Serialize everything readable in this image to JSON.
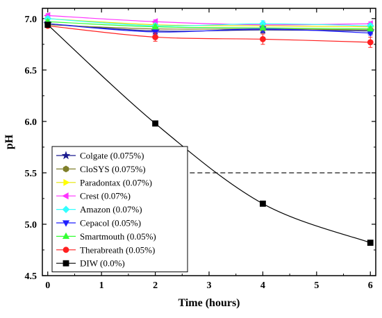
{
  "chart_data": {
    "type": "line",
    "title": "",
    "xlabel": "Time (hours)",
    "ylabel": "pH",
    "xlim": [
      -0.1,
      6.1
    ],
    "ylim": [
      4.5,
      7.1
    ],
    "xticks": [
      0,
      1,
      2,
      3,
      4,
      5,
      6
    ],
    "xtick_labels": [
      "0",
      "1",
      "2",
      "3",
      "4",
      "5",
      "6"
    ],
    "yticks": [
      4.5,
      5.0,
      5.5,
      6.0,
      6.5,
      7.0
    ],
    "ytick_labels": [
      "4.5",
      "5.0",
      "5.5",
      "6.0",
      "6.5",
      "7.0"
    ],
    "grid": false,
    "legend_position": "bottom-left",
    "threshold": {
      "y": 5.5,
      "x_from": 2.5,
      "x_to": 6.0,
      "style": "dashed"
    },
    "x": [
      0,
      2,
      4,
      6
    ],
    "series": [
      {
        "name": "Colgate (0.075%)",
        "values": [
          6.95,
          6.88,
          6.89,
          6.88
        ],
        "color": "#1b1b8f",
        "marker": "star",
        "errors": [
          0.02,
          0.02,
          0.03,
          0.02
        ]
      },
      {
        "name": "CloSYS (0.075%)",
        "values": [
          6.94,
          6.9,
          6.9,
          6.89
        ],
        "color": "#7f7f2a",
        "marker": "hexagon",
        "errors": [
          0.02,
          0.02,
          0.02,
          0.02
        ]
      },
      {
        "name": "Paradontax (0.07%)",
        "values": [
          7.0,
          6.94,
          6.93,
          6.92
        ],
        "color": "#ffff00",
        "marker": "triangle-right",
        "errors": [
          0.02,
          0.02,
          0.02,
          0.02
        ]
      },
      {
        "name": "Crest (0.07%)",
        "values": [
          7.03,
          6.97,
          6.94,
          6.95
        ],
        "color": "#ff33ff",
        "marker": "triangle-left",
        "errors": [
          0.02,
          0.02,
          0.02,
          0.02
        ]
      },
      {
        "name": "Amazon (0.07%)",
        "values": [
          7.0,
          6.93,
          6.95,
          6.93
        ],
        "color": "#33ffff",
        "marker": "diamond",
        "errors": [
          0.02,
          0.02,
          0.03,
          0.02
        ]
      },
      {
        "name": "Cepacol (0.05%)",
        "values": [
          6.95,
          6.87,
          6.9,
          6.86
        ],
        "color": "#1f1fff",
        "marker": "triangle-down",
        "errors": [
          0.02,
          0.02,
          0.03,
          0.02
        ]
      },
      {
        "name": "Smartmouth (0.05%)",
        "values": [
          6.97,
          6.92,
          6.91,
          6.9
        ],
        "color": "#33ff33",
        "marker": "triangle-up",
        "errors": [
          0.02,
          0.02,
          0.02,
          0.02
        ]
      },
      {
        "name": "Therabreath (0.05%)",
        "values": [
          6.93,
          6.82,
          6.8,
          6.77
        ],
        "color": "#ff2020",
        "marker": "circle",
        "errors": [
          0.02,
          0.04,
          0.05,
          0.05
        ]
      },
      {
        "name": "DIW (0.0%)",
        "values": [
          6.94,
          5.98,
          5.2,
          4.82
        ],
        "color": "#000000",
        "marker": "square",
        "errors": [
          0.0,
          0.0,
          0.0,
          0.0
        ]
      }
    ]
  }
}
